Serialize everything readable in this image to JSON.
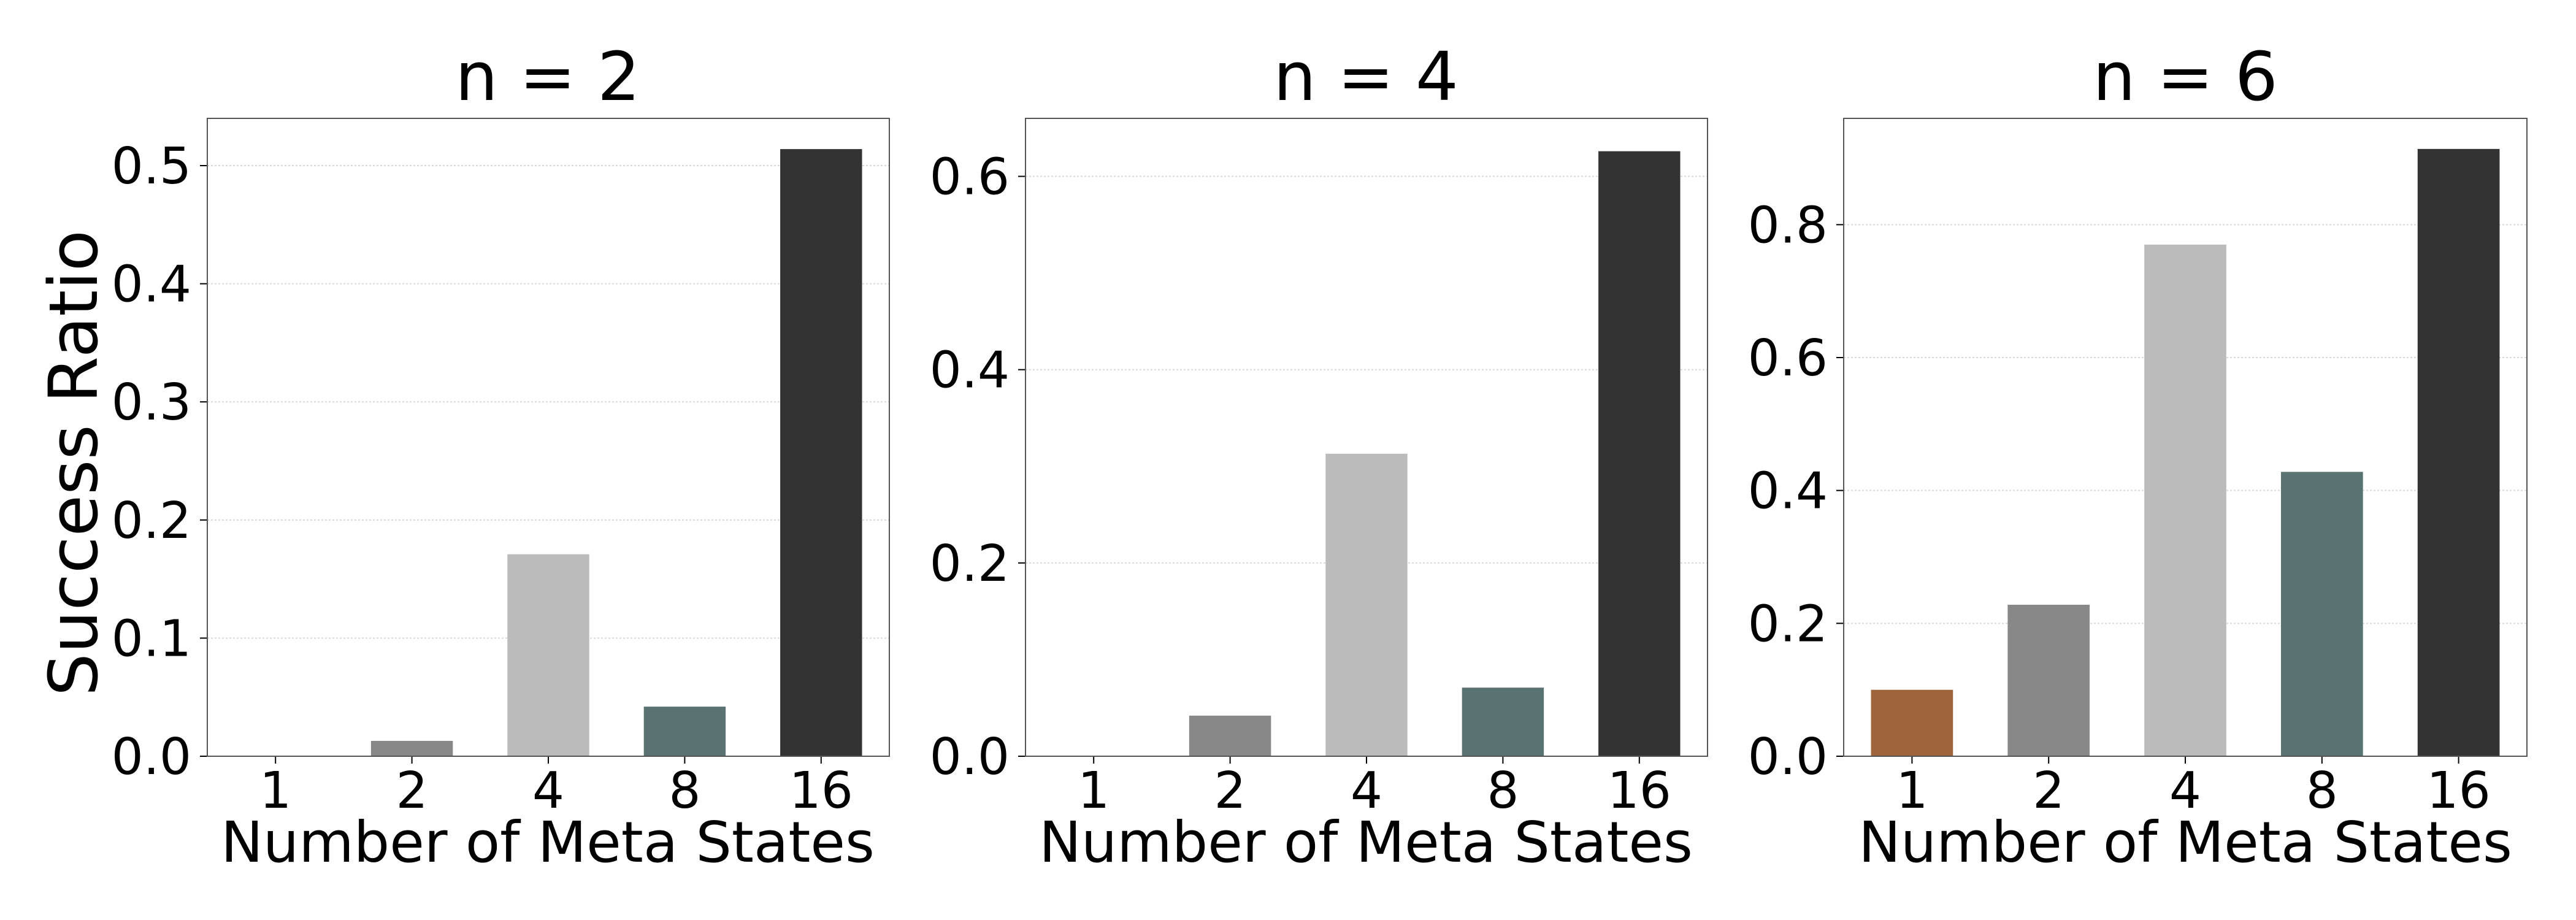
{
  "figure": {
    "ylabel": "Success Ratio"
  },
  "chart_data": [
    {
      "type": "bar",
      "title": "n = 2",
      "xlabel": "Number of Meta States",
      "ylabel": "Success Ratio",
      "categories": [
        "1",
        "2",
        "4",
        "8",
        "16"
      ],
      "values": [
        0.0,
        0.013,
        0.171,
        0.042,
        0.514
      ],
      "colors": [
        "#a0643c",
        "#888888",
        "#bbbbbb",
        "#597373",
        "#333333"
      ],
      "ylim": [
        0,
        0.54
      ],
      "yticks": [
        0.0,
        0.1,
        0.2,
        0.3,
        0.4,
        0.5
      ],
      "ytick_labels": [
        "0.0",
        "0.1",
        "0.2",
        "0.3",
        "0.4",
        "0.5"
      ],
      "grid": true
    },
    {
      "type": "bar",
      "title": "n = 4",
      "xlabel": "Number of Meta States",
      "categories": [
        "1",
        "2",
        "4",
        "8",
        "16"
      ],
      "values": [
        0.0,
        0.042,
        0.313,
        0.071,
        0.626
      ],
      "colors": [
        "#a0643c",
        "#888888",
        "#bbbbbb",
        "#597373",
        "#333333"
      ],
      "ylim": [
        0,
        0.66
      ],
      "yticks": [
        0.0,
        0.2,
        0.4,
        0.6
      ],
      "ytick_labels": [
        "0.0",
        "0.2",
        "0.4",
        "0.6"
      ],
      "grid": true
    },
    {
      "type": "bar",
      "title": "n = 6",
      "xlabel": "Number of Meta States",
      "categories": [
        "1",
        "2",
        "4",
        "8",
        "16"
      ],
      "values": [
        0.1,
        0.228,
        0.77,
        0.428,
        0.914
      ],
      "colors": [
        "#a0643c",
        "#888888",
        "#bbbbbb",
        "#597373",
        "#333333"
      ],
      "ylim": [
        0,
        0.96
      ],
      "yticks": [
        0.0,
        0.2,
        0.4,
        0.6,
        0.8
      ],
      "ytick_labels": [
        "0.0",
        "0.2",
        "0.4",
        "0.6",
        "0.8"
      ],
      "grid": true
    }
  ]
}
